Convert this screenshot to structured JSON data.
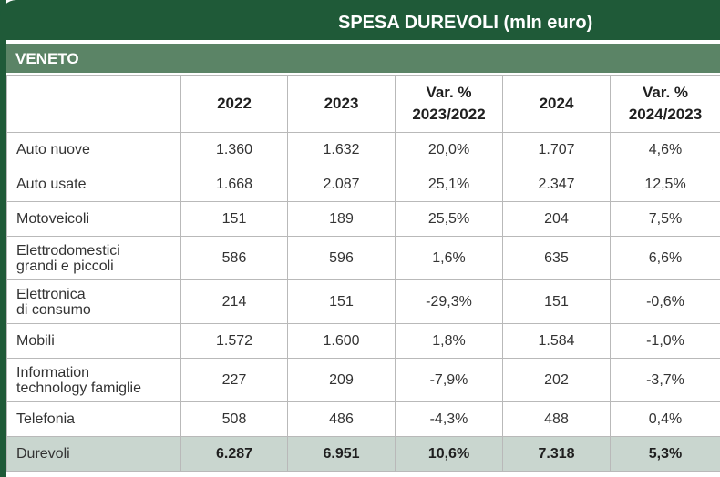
{
  "header": {
    "title": "SPESA DUREVOLI (mln euro)",
    "region": "VENETO"
  },
  "columns": [
    "",
    "2022",
    "2023",
    "Var. %\n2023/2022",
    "2024",
    "Var. %\n2024/2023"
  ],
  "rows": [
    {
      "label": "Auto nuove",
      "v2022": "1.360",
      "v2023": "1.632",
      "var1": "20,0%",
      "v2024": "1.707",
      "var2": "4,6%"
    },
    {
      "label": "Auto usate",
      "v2022": "1.668",
      "v2023": "2.087",
      "var1": "25,1%",
      "v2024": "2.347",
      "var2": "12,5%"
    },
    {
      "label": "Motoveicoli",
      "v2022": "151",
      "v2023": "189",
      "var1": "25,5%",
      "v2024": "204",
      "var2": "7,5%"
    },
    {
      "label": "Elettrodomestici\ngrandi e piccoli",
      "v2022": "586",
      "v2023": "596",
      "var1": "1,6%",
      "v2024": "635",
      "var2": "6,6%"
    },
    {
      "label": "Elettronica\ndi consumo",
      "v2022": "214",
      "v2023": "151",
      "var1": "-29,3%",
      "v2024": "151",
      "var2": "-0,6%"
    },
    {
      "label": "Mobili",
      "v2022": "1.572",
      "v2023": "1.600",
      "var1": "1,8%",
      "v2024": "1.584",
      "var2": "-1,0%"
    },
    {
      "label": "Information\ntechnology famiglie",
      "v2022": "227",
      "v2023": "209",
      "var1": "-7,9%",
      "v2024": "202",
      "var2": "-3,7%"
    },
    {
      "label": "Telefonia",
      "v2022": "508",
      "v2023": "486",
      "var1": "-4,3%",
      "v2024": "488",
      "var2": "0,4%"
    }
  ],
  "total": {
    "label": "Durevoli",
    "v2022": "6.287",
    "v2023": "6.951",
    "var1": "10,6%",
    "v2024": "7.318",
    "var2": "5,3%"
  },
  "colors": {
    "dark_green": "#1f5a38",
    "mid_green": "#5b8466",
    "total_bg": "#c9d6cf"
  }
}
